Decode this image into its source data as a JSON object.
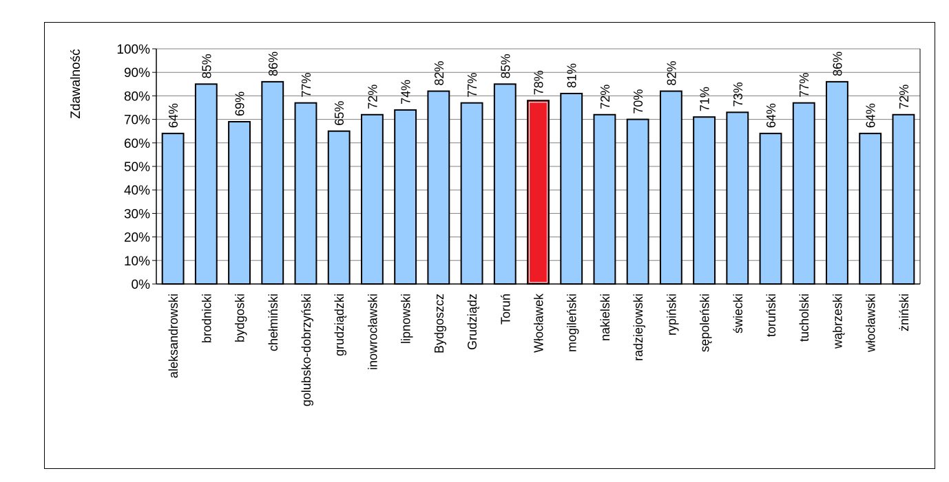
{
  "chart_data": {
    "type": "bar",
    "title": "",
    "xlabel": "",
    "ylabel": "Zdawalność",
    "ylim": [
      0,
      100
    ],
    "y_ticks": [
      "0%",
      "10%",
      "20%",
      "30%",
      "40%",
      "50%",
      "60%",
      "70%",
      "80%",
      "90%",
      "100%"
    ],
    "grid": true,
    "categories": [
      "aleksandrowski",
      "brodnicki",
      "bydgoski",
      "chełmiński",
      "golubsko-dobrzyński",
      "grudziądzki",
      "inowrocławski",
      "lipnowski",
      "Bydgoszcz",
      "Grudziądz",
      "Toruń",
      "Włocławek",
      "mogileński",
      "nakielski",
      "radziejowski",
      "rypiński",
      "sępoleński",
      "świecki",
      "toruński",
      "tucholski",
      "wąbrzeski",
      "włocławski",
      "żniński"
    ],
    "values": [
      64,
      85,
      69,
      86,
      77,
      65,
      72,
      74,
      82,
      77,
      85,
      78,
      81,
      72,
      70,
      82,
      71,
      73,
      64,
      77,
      86,
      64,
      72
    ],
    "data_labels": [
      "64%",
      "85%",
      "69%",
      "86%",
      "77%",
      "65%",
      "72%",
      "74%",
      "82%",
      "77%",
      "85%",
      "78%",
      "81%",
      "72%",
      "70%",
      "82%",
      "71%",
      "73%",
      "64%",
      "77%",
      "86%",
      "64%",
      "72%"
    ],
    "highlight_index": 11,
    "colors": {
      "bar": "#99ccff",
      "highlight": "#ee1c25",
      "outline": "#000000",
      "grid": "#808080"
    }
  }
}
